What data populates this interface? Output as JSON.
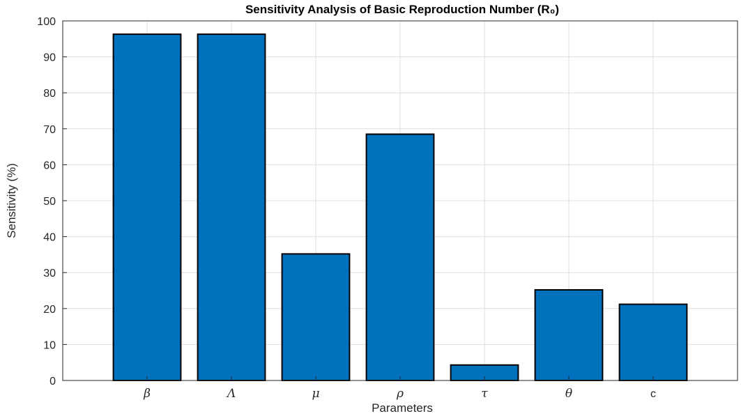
{
  "chart_data": {
    "type": "bar",
    "title": "Sensitivity Analysis of Basic Reproduction Number (R₀)",
    "xlabel": "Parameters",
    "ylabel": "Sensitivity (%)",
    "categories": [
      "β",
      "Λ",
      "μ",
      "ρ",
      "τ",
      "θ",
      "c"
    ],
    "values": [
      96.3,
      96.3,
      35.2,
      68.5,
      4.3,
      25.2,
      21.2
    ],
    "ylim": [
      0,
      100
    ],
    "yticks": [
      "0",
      "10",
      "20",
      "30",
      "40",
      "50",
      "60",
      "70",
      "80",
      "90",
      "100"
    ],
    "grid": true,
    "bar_color": "#0072BD",
    "edge_color": "#000000"
  }
}
